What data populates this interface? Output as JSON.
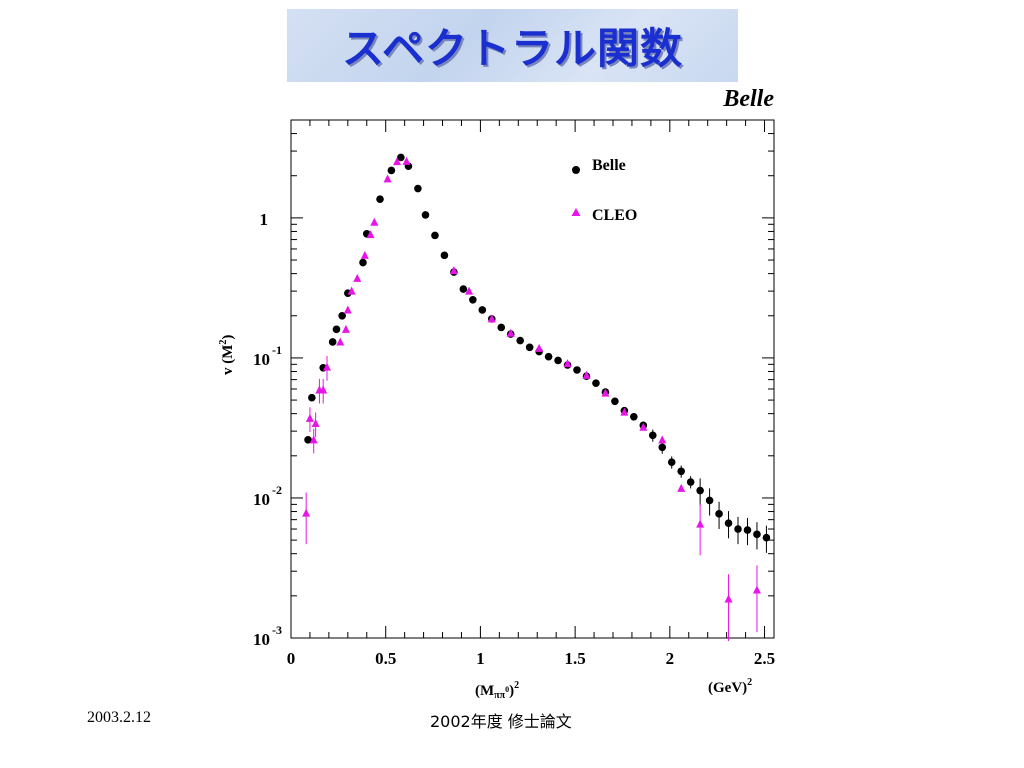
{
  "slide": {
    "title": "スペクトラル関数",
    "belle_tag": "Belle",
    "footer_date": "2003.2.12",
    "footer_center": "2002年度 修士論文"
  },
  "chart_data": {
    "type": "scatter",
    "xlabel": "(Mππ0)2",
    "xunit": "(GeV)2",
    "ylabel": "v (M2)",
    "xlim": [
      0,
      2.55
    ],
    "ylim": [
      0.001,
      5
    ],
    "yscale": "log",
    "x_ticks": [
      "0",
      "0.5",
      "1",
      "1.5",
      "2",
      "2.5"
    ],
    "y_ticks": [
      {
        "base": "1",
        "exp": ""
      },
      {
        "base": "10",
        "exp": "-1"
      },
      {
        "base": "10",
        "exp": "-2"
      },
      {
        "base": "10",
        "exp": "-3"
      }
    ],
    "legend_position": "top-right",
    "series": [
      {
        "name": "Belle",
        "marker": "circle",
        "color": "#000000",
        "points": [
          [
            0.09,
            0.026
          ],
          [
            0.11,
            0.052
          ],
          [
            0.17,
            0.085
          ],
          [
            0.22,
            0.13
          ],
          [
            0.24,
            0.16
          ],
          [
            0.27,
            0.2
          ],
          [
            0.3,
            0.29
          ],
          [
            0.38,
            0.48
          ],
          [
            0.4,
            0.77
          ],
          [
            0.47,
            1.36
          ],
          [
            0.53,
            2.18
          ],
          [
            0.58,
            2.7
          ],
          [
            0.62,
            2.34
          ],
          [
            0.67,
            1.62
          ],
          [
            0.71,
            1.05
          ],
          [
            0.76,
            0.75
          ],
          [
            0.81,
            0.54
          ],
          [
            0.86,
            0.41
          ],
          [
            0.91,
            0.31
          ],
          [
            0.96,
            0.26
          ],
          [
            1.01,
            0.22
          ],
          [
            1.06,
            0.19
          ],
          [
            1.11,
            0.165
          ],
          [
            1.16,
            0.148
          ],
          [
            1.21,
            0.133
          ],
          [
            1.26,
            0.119
          ],
          [
            1.31,
            0.111
          ],
          [
            1.36,
            0.102
          ],
          [
            1.41,
            0.096
          ],
          [
            1.46,
            0.089
          ],
          [
            1.51,
            0.082
          ],
          [
            1.56,
            0.074
          ],
          [
            1.61,
            0.066
          ],
          [
            1.66,
            0.057
          ],
          [
            1.71,
            0.049
          ],
          [
            1.76,
            0.042
          ],
          [
            1.81,
            0.038
          ],
          [
            1.86,
            0.033
          ],
          [
            1.91,
            0.028
          ],
          [
            1.96,
            0.023
          ],
          [
            2.01,
            0.018
          ],
          [
            2.06,
            0.0155
          ],
          [
            2.11,
            0.013
          ],
          [
            2.16,
            0.0113
          ],
          [
            2.21,
            0.0096
          ],
          [
            2.26,
            0.0077
          ],
          [
            2.31,
            0.0066
          ],
          [
            2.36,
            0.006
          ],
          [
            2.41,
            0.0059
          ],
          [
            2.46,
            0.0055
          ],
          [
            2.51,
            0.0052
          ]
        ]
      },
      {
        "name": "CLEO",
        "marker": "triangle",
        "color": "#e815e8",
        "points": [
          [
            0.08,
            0.0078
          ],
          [
            0.1,
            0.037
          ],
          [
            0.12,
            0.026
          ],
          [
            0.13,
            0.034
          ],
          [
            0.15,
            0.059
          ],
          [
            0.17,
            0.059
          ],
          [
            0.19,
            0.086
          ],
          [
            0.26,
            0.13
          ],
          [
            0.29,
            0.16
          ],
          [
            0.3,
            0.22
          ],
          [
            0.32,
            0.3
          ],
          [
            0.35,
            0.37
          ],
          [
            0.39,
            0.54
          ],
          [
            0.42,
            0.76
          ],
          [
            0.44,
            0.93
          ],
          [
            0.51,
            1.9
          ],
          [
            0.56,
            2.52
          ],
          [
            0.61,
            2.53
          ],
          [
            0.86,
            0.42
          ],
          [
            0.94,
            0.3
          ],
          [
            1.06,
            0.19
          ],
          [
            1.16,
            0.15
          ],
          [
            1.31,
            0.117
          ],
          [
            1.46,
            0.091
          ],
          [
            1.56,
            0.075
          ],
          [
            1.66,
            0.056
          ],
          [
            1.76,
            0.041
          ],
          [
            1.86,
            0.032
          ],
          [
            1.96,
            0.026
          ],
          [
            2.06,
            0.0117
          ],
          [
            2.16,
            0.0065
          ],
          [
            2.31,
            0.0019
          ],
          [
            2.46,
            0.0022
          ]
        ]
      }
    ]
  }
}
